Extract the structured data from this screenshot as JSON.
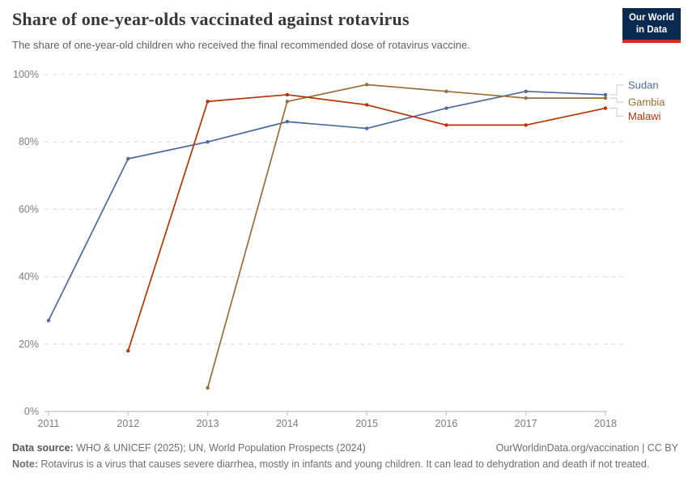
{
  "header": {
    "title": "Share of one-year-olds vaccinated against rotavirus",
    "subtitle": "The share of one-year-old children who received the final recommended dose of rotavirus vaccine.",
    "logo": {
      "line1": "Our World",
      "line2": "in Data",
      "bg_color": "#0A2A52",
      "bar_color": "#DC2A20"
    }
  },
  "chart_data": {
    "type": "line",
    "title": "Share of one-year-olds vaccinated against rotavirus",
    "xlabel": "",
    "ylabel": "",
    "xlim": [
      2011,
      2018
    ],
    "ylim": [
      0,
      100
    ],
    "x_ticks": [
      2011,
      2012,
      2013,
      2014,
      2015,
      2016,
      2017,
      2018
    ],
    "y_ticks": [
      0,
      20,
      40,
      60,
      80,
      100
    ],
    "y_tick_suffix": "%",
    "grid": "horizontal-dashed",
    "legend_position": "right-of-line-ends",
    "series": [
      {
        "name": "Sudan",
        "color": "#4C6A9C",
        "x": [
          2011,
          2012,
          2013,
          2014,
          2015,
          2016,
          2017,
          2018
        ],
        "values": [
          27,
          75,
          80,
          86,
          84,
          90,
          95,
          94
        ]
      },
      {
        "name": "Gambia",
        "color": "#996D39",
        "x": [
          2013,
          2014,
          2015,
          2016,
          2017,
          2018
        ],
        "values": [
          7,
          92,
          97,
          95,
          93,
          93
        ]
      },
      {
        "name": "Malawi",
        "color": "#B13507",
        "x": [
          2012,
          2013,
          2014,
          2015,
          2016,
          2017,
          2018
        ],
        "values": [
          18,
          92,
          94,
          91,
          85,
          85,
          90
        ]
      }
    ]
  },
  "footer": {
    "source_label": "Data source:",
    "source_text": " WHO & UNICEF (2025); UN, World Population Prospects (2024)",
    "credit": "OurWorldinData.org/vaccination | CC BY",
    "note_label": "Note:",
    "note_text": " Rotavirus is a virus that causes severe diarrhea, mostly in infants and young children. It can lead to dehydration and death if not treated."
  }
}
